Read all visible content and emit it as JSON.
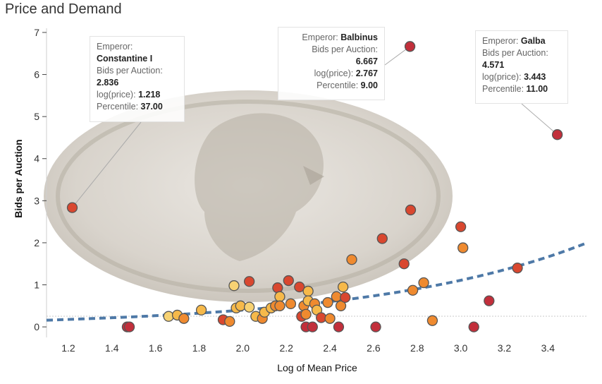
{
  "title": "Price and Demand",
  "colors": {
    "trend": "#4e79a7",
    "dark_red": "#c22f3b",
    "red": "#d9472f",
    "orange": "#ef8a2f",
    "gold": "#f6b94a",
    "light": "#f7d273",
    "coin": "#d8d3cb"
  },
  "chart_data": {
    "type": "scatter",
    "xlabel": "Log of Mean Price",
    "ylabel": "Bids per Auction",
    "xlim": [
      1.1,
      3.58
    ],
    "ylim": [
      -0.25,
      7.1
    ],
    "x_ticks": [
      "1.2",
      "1.4",
      "1.6",
      "1.8",
      "2.0",
      "2.2",
      "2.4",
      "2.6",
      "2.8",
      "3.0",
      "3.2",
      "3.4"
    ],
    "y_ticks": [
      "0",
      "1",
      "2",
      "3",
      "4",
      "5",
      "6",
      "7"
    ],
    "grid": false,
    "points": [
      {
        "x": 1.218,
        "y": 2.836,
        "c": "red"
      },
      {
        "x": 1.47,
        "y": 0.0,
        "c": "dark_red"
      },
      {
        "x": 1.48,
        "y": 0.0,
        "c": "dark_red"
      },
      {
        "x": 1.66,
        "y": 0.25,
        "c": "light"
      },
      {
        "x": 1.7,
        "y": 0.28,
        "c": "gold"
      },
      {
        "x": 1.73,
        "y": 0.2,
        "c": "orange"
      },
      {
        "x": 1.81,
        "y": 0.4,
        "c": "gold"
      },
      {
        "x": 1.91,
        "y": 0.17,
        "c": "red"
      },
      {
        "x": 1.94,
        "y": 0.13,
        "c": "orange"
      },
      {
        "x": 1.96,
        "y": 0.98,
        "c": "light"
      },
      {
        "x": 1.97,
        "y": 0.45,
        "c": "gold"
      },
      {
        "x": 1.99,
        "y": 0.5,
        "c": "gold"
      },
      {
        "x": 2.03,
        "y": 1.08,
        "c": "red"
      },
      {
        "x": 2.03,
        "y": 0.47,
        "c": "light"
      },
      {
        "x": 2.06,
        "y": 0.25,
        "c": "gold"
      },
      {
        "x": 2.09,
        "y": 0.2,
        "c": "orange"
      },
      {
        "x": 2.1,
        "y": 0.35,
        "c": "gold"
      },
      {
        "x": 2.13,
        "y": 0.45,
        "c": "gold"
      },
      {
        "x": 2.15,
        "y": 0.5,
        "c": "orange"
      },
      {
        "x": 2.16,
        "y": 0.93,
        "c": "red"
      },
      {
        "x": 2.17,
        "y": 0.72,
        "c": "gold"
      },
      {
        "x": 2.17,
        "y": 0.5,
        "c": "orange"
      },
      {
        "x": 2.21,
        "y": 1.1,
        "c": "red"
      },
      {
        "x": 2.22,
        "y": 0.55,
        "c": "orange"
      },
      {
        "x": 2.26,
        "y": 0.95,
        "c": "red"
      },
      {
        "x": 2.27,
        "y": 0.25,
        "c": "red"
      },
      {
        "x": 2.28,
        "y": 0.5,
        "c": "orange"
      },
      {
        "x": 2.29,
        "y": 0.0,
        "c": "dark_red"
      },
      {
        "x": 2.29,
        "y": 0.3,
        "c": "orange"
      },
      {
        "x": 2.3,
        "y": 0.85,
        "c": "gold"
      },
      {
        "x": 2.3,
        "y": 0.62,
        "c": "gold"
      },
      {
        "x": 2.32,
        "y": 0.0,
        "c": "dark_red"
      },
      {
        "x": 2.33,
        "y": 0.55,
        "c": "orange"
      },
      {
        "x": 2.34,
        "y": 0.4,
        "c": "gold"
      },
      {
        "x": 2.36,
        "y": 0.22,
        "c": "red"
      },
      {
        "x": 2.39,
        "y": 0.58,
        "c": "orange"
      },
      {
        "x": 2.4,
        "y": 0.2,
        "c": "orange"
      },
      {
        "x": 2.43,
        "y": 0.72,
        "c": "orange"
      },
      {
        "x": 2.44,
        "y": 0.0,
        "c": "dark_red"
      },
      {
        "x": 2.45,
        "y": 0.5,
        "c": "orange"
      },
      {
        "x": 2.46,
        "y": 0.95,
        "c": "gold"
      },
      {
        "x": 2.47,
        "y": 0.7,
        "c": "red"
      },
      {
        "x": 2.5,
        "y": 1.6,
        "c": "orange"
      },
      {
        "x": 2.61,
        "y": 0.0,
        "c": "dark_red"
      },
      {
        "x": 2.64,
        "y": 2.1,
        "c": "red"
      },
      {
        "x": 2.74,
        "y": 1.5,
        "c": "red"
      },
      {
        "x": 2.767,
        "y": 6.667,
        "c": "dark_red"
      },
      {
        "x": 2.77,
        "y": 2.78,
        "c": "red"
      },
      {
        "x": 2.78,
        "y": 0.87,
        "c": "orange"
      },
      {
        "x": 2.83,
        "y": 1.05,
        "c": "orange"
      },
      {
        "x": 2.87,
        "y": 0.15,
        "c": "orange"
      },
      {
        "x": 3.0,
        "y": 2.38,
        "c": "red"
      },
      {
        "x": 3.01,
        "y": 1.88,
        "c": "orange"
      },
      {
        "x": 3.06,
        "y": 0.0,
        "c": "dark_red"
      },
      {
        "x": 3.13,
        "y": 0.62,
        "c": "dark_red"
      },
      {
        "x": 3.26,
        "y": 1.4,
        "c": "red"
      },
      {
        "x": 3.443,
        "y": 4.571,
        "c": "dark_red"
      }
    ],
    "trend": {
      "style": "dashed",
      "y_at_min_x": 0.16,
      "y_at_max_x": 2.0
    }
  },
  "tooltips": [
    {
      "emperor_label": "Emperor:",
      "emperor": "Constantine I",
      "bids_label": "Bids per Auction:",
      "bids": "2.836",
      "logprice_label": "log(price):",
      "logprice": "1.218",
      "percentile_label": "Percentile:",
      "percentile": "37.00"
    },
    {
      "emperor_label": "Emperor:",
      "emperor": "Balbinus",
      "bids_label": "Bids per Auction:",
      "bids": "6.667",
      "logprice_label": "log(price):",
      "logprice": "2.767",
      "percentile_label": "Percentile:",
      "percentile": "9.00"
    },
    {
      "emperor_label": "Emperor:",
      "emperor": "Galba",
      "bids_label": "Bids per Auction:",
      "bids": "4.571",
      "logprice_label": "log(price):",
      "logprice": "3.443",
      "percentile_label": "Percentile:",
      "percentile": "11.00"
    }
  ]
}
